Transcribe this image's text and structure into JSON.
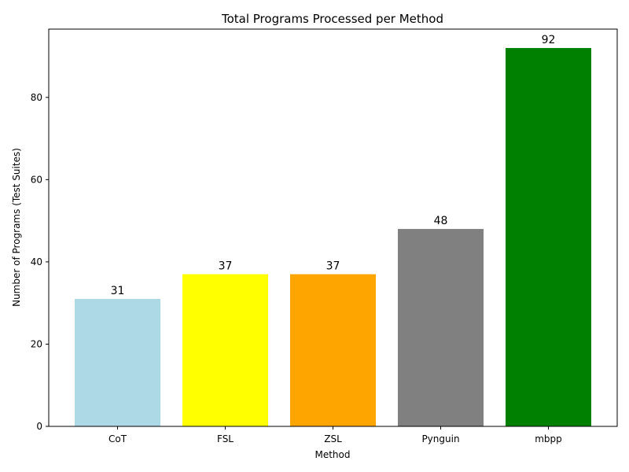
{
  "chart_data": {
    "type": "bar",
    "title": "Total Programs Processed per Method",
    "xlabel": "Method",
    "ylabel": "Number of Programs (Test Suites)",
    "categories": [
      "CoT",
      "FSL",
      "ZSL",
      "Pynguin",
      "mbpp"
    ],
    "values": [
      31,
      37,
      37,
      48,
      92
    ],
    "colors": [
      "#add8e6",
      "#ffff00",
      "#ffa500",
      "#808080",
      "#008000"
    ],
    "ylim": [
      0,
      96.6
    ],
    "yticks": [
      0,
      20,
      40,
      60,
      80
    ],
    "grid": false,
    "legend": "none",
    "data_labels": true
  }
}
